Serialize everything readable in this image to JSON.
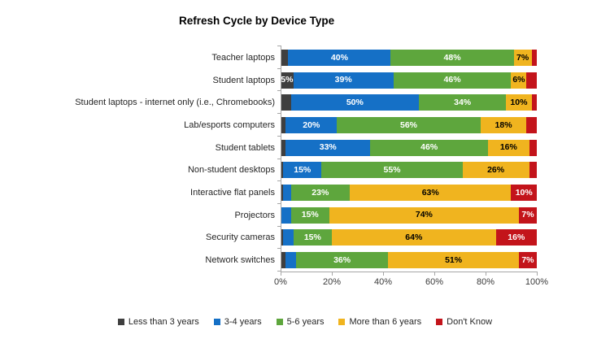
{
  "chart_data": {
    "type": "bar",
    "stacked": true,
    "orientation": "horizontal",
    "title": "Refresh Cycle by Device Type",
    "categories": [
      "Teacher laptops",
      "Student laptops",
      "Student laptops - internet only (i.e., Chromebooks)",
      "Lab/esports computers",
      "Student tablets",
      "Non-student desktops",
      "Interactive flat panels",
      "Projectors",
      "Security cameras",
      "Network switches"
    ],
    "series": [
      {
        "name": "Less than 3 years",
        "color": "#3f3f3f",
        "label_color": "#ffffff",
        "values": [
          3,
          5,
          4,
          2,
          2,
          1,
          1,
          0,
          1,
          2
        ]
      },
      {
        "name": "3-4 years",
        "color": "#1570c6",
        "label_color": "#ffffff",
        "values": [
          40,
          39,
          50,
          20,
          33,
          15,
          3,
          4,
          4,
          4
        ]
      },
      {
        "name": "5-6 years",
        "color": "#5ea63d",
        "label_color": "#ffffff",
        "values": [
          48,
          46,
          34,
          56,
          46,
          55,
          23,
          15,
          15,
          36
        ]
      },
      {
        "name": "More than 6 years",
        "color": "#f0b41f",
        "label_color": "#000000",
        "values": [
          7,
          6,
          10,
          18,
          16,
          26,
          63,
          74,
          64,
          51
        ]
      },
      {
        "name": "Don't Know",
        "color": "#c3141b",
        "label_color": "#ffffff",
        "values": [
          2,
          4,
          2,
          4,
          3,
          3,
          10,
          7,
          16,
          7
        ]
      }
    ],
    "x_ticks": [
      "0%",
      "20%",
      "40%",
      "60%",
      "80%",
      "100%"
    ],
    "xlim": [
      0,
      100
    ],
    "label_suffix": "%",
    "label_threshold": 5,
    "legend_position": "bottom",
    "grid": false
  }
}
